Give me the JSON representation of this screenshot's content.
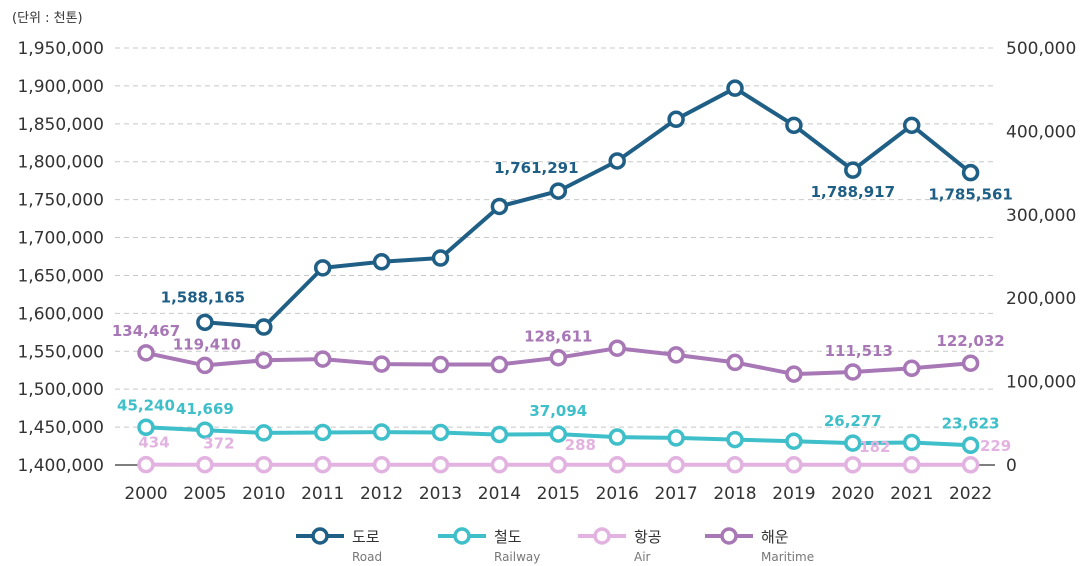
{
  "chart_data": {
    "type": "line",
    "unit_label": "(단위 : 천톤)",
    "categories": [
      "2000",
      "2005",
      "2010",
      "2011",
      "2012",
      "2013",
      "2014",
      "2015",
      "2016",
      "2017",
      "2018",
      "2019",
      "2020",
      "2021",
      "2022"
    ],
    "left_axis": {
      "ylim": [
        1400000,
        1950000
      ],
      "tick_labels": [
        "1,400,000",
        "1,450,000",
        "1,500,000",
        "1,550,000",
        "1,600,000",
        "1,650,000",
        "1,700,000",
        "1,750,000",
        "1,800,000",
        "1,850,000",
        "1,900,000",
        "1,950,000"
      ]
    },
    "right_axis": {
      "ylim": [
        0,
        500000
      ],
      "tick_labels": [
        "0",
        "100,000",
        "200,000",
        "300,000",
        "400,000",
        "500,000"
      ]
    },
    "grid": true,
    "legend_position": "bottom",
    "series": [
      {
        "key": "road",
        "name": "도로",
        "name_en": "Road",
        "axis": "left",
        "color": "#1f5f86",
        "values": [
          null,
          1588165,
          1582000,
          1660000,
          1668000,
          1673000,
          1741000,
          1761291,
          1801000,
          1856000,
          1897000,
          1848000,
          1788917,
          1848000,
          1785561
        ],
        "labels": [
          null,
          "1,588,165",
          null,
          null,
          null,
          null,
          null,
          "1,761,291",
          null,
          null,
          null,
          null,
          "1,788,917",
          null,
          "1,785,561"
        ]
      },
      {
        "key": "maritime",
        "name": "해운",
        "name_en": "Maritime",
        "axis": "right",
        "color": "#a877b6",
        "values": [
          134467,
          119410,
          125500,
          127000,
          121000,
          120500,
          120500,
          128611,
          140000,
          132000,
          123000,
          109000,
          111513,
          116000,
          122032
        ],
        "labels": [
          "134,467",
          "119,410",
          null,
          null,
          null,
          null,
          null,
          "128,611",
          null,
          null,
          null,
          null,
          "111,513",
          null,
          "122,032"
        ]
      },
      {
        "key": "railway",
        "name": "철도",
        "name_en": "Railway",
        "axis": "right",
        "color": "#3ebfc9",
        "values": [
          45240,
          41669,
          38500,
          39000,
          39500,
          39000,
          36500,
          37094,
          33500,
          32500,
          30500,
          28500,
          26277,
          27000,
          23623
        ],
        "labels": [
          "45,240",
          "41,669",
          null,
          null,
          null,
          null,
          null,
          "37,094",
          null,
          null,
          null,
          null,
          "26,277",
          null,
          "23,623"
        ]
      },
      {
        "key": "air",
        "name": "항공",
        "name_en": "Air",
        "axis": "right",
        "color": "#e2b3e0",
        "values": [
          434,
          372,
          350,
          340,
          310,
          320,
          300,
          288,
          300,
          290,
          280,
          250,
          182,
          260,
          229
        ],
        "labels": [
          "434",
          "372",
          null,
          null,
          null,
          null,
          null,
          "288",
          null,
          null,
          null,
          null,
          "182",
          null,
          "229"
        ]
      }
    ]
  }
}
